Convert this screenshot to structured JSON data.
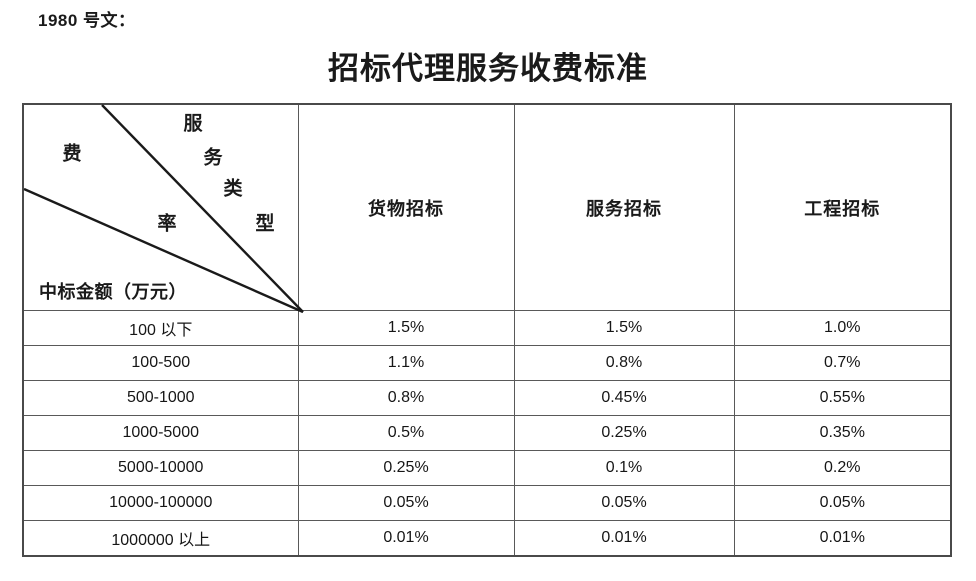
{
  "page": {
    "doc_label": "1980 号文：",
    "title": "招标代理服务收费标准"
  },
  "table": {
    "corner": {
      "service_type_chars": [
        "服",
        "务",
        "类",
        "型"
      ],
      "fee_rate_chars": [
        "费",
        "率"
      ],
      "amount_label": "中标金额（万元）"
    },
    "columns": [
      "货物招标",
      "服务招标",
      "工程招标"
    ],
    "rows": [
      {
        "range": "100 以下",
        "values": [
          "1.5%",
          "1.5%",
          "1.0%"
        ]
      },
      {
        "range": "100-500",
        "values": [
          "1.1%",
          "0.8%",
          "0.7%"
        ]
      },
      {
        "range": "500-1000",
        "values": [
          "0.8%",
          "0.45%",
          "0.55%"
        ]
      },
      {
        "range": "1000-5000",
        "values": [
          "0.5%",
          "0.25%",
          "0.35%"
        ]
      },
      {
        "range": "5000-10000",
        "values": [
          "0.25%",
          "0.1%",
          "0.2%"
        ]
      },
      {
        "range": "10000-100000",
        "values": [
          "0.05%",
          "0.05%",
          "0.05%"
        ]
      },
      {
        "range": "1000000 以上",
        "values": [
          "0.01%",
          "0.01%",
          "0.01%"
        ]
      }
    ]
  },
  "colors": {
    "text": "#1a1a1a",
    "border_outer": "#4a4a4a",
    "border_inner": "#595959",
    "diagonal_line": "#1a1a1a",
    "background": "#ffffff"
  }
}
